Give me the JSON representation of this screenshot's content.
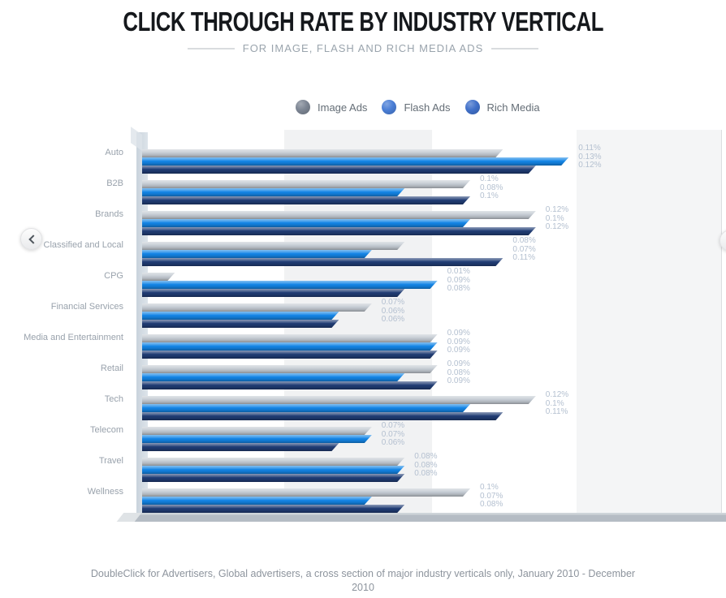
{
  "header": {
    "title": "CLICK THROUGH RATE BY INDUSTRY VERTICAL",
    "subtitle": "FOR IMAGE, FLASH AND RICH MEDIA ADS"
  },
  "legend": {
    "items": [
      {
        "label": "Image Ads",
        "color": "#7c8593"
      },
      {
        "label": "Flash Ads",
        "color": "#4a7ed6"
      },
      {
        "label": "Rich Media",
        "color": "#4070c9"
      }
    ]
  },
  "chart_data": {
    "type": "bar",
    "orientation": "horizontal",
    "title": "CLICK THROUGH RATE BY INDUSTRY VERTICAL",
    "subtitle": "FOR IMAGE, FLASH AND RICH MEDIA ADS",
    "unit": "%",
    "xlim": [
      0,
      0.14
    ],
    "grid": false,
    "legend_position": "top",
    "categories": [
      "Auto",
      "B2B",
      "Brands",
      "Classified and Local",
      "CPG",
      "Financial Services",
      "Media and Entertainment",
      "Retail",
      "Tech",
      "Telecom",
      "Travel",
      "Wellness"
    ],
    "series": [
      {
        "name": "Image Ads",
        "color": "#c3cad2",
        "values": [
          0.11,
          0.1,
          0.12,
          0.08,
          0.01,
          0.07,
          0.09,
          0.09,
          0.12,
          0.07,
          0.08,
          0.1
        ]
      },
      {
        "name": "Flash Ads",
        "color": "#1385e6",
        "values": [
          0.13,
          0.08,
          0.1,
          0.07,
          0.09,
          0.06,
          0.09,
          0.08,
          0.1,
          0.07,
          0.08,
          0.07
        ]
      },
      {
        "name": "Rich Media",
        "color": "#203c74",
        "values": [
          0.12,
          0.1,
          0.12,
          0.11,
          0.08,
          0.06,
          0.09,
          0.09,
          0.11,
          0.06,
          0.08,
          0.08
        ]
      }
    ],
    "value_label_suffix": "%"
  },
  "nav": {
    "prev_label": "previous",
    "next_label": "next"
  },
  "footer": {
    "line1": "DoubleClick for Advertisers, Global advertisers, a cross section of major industry verticals only, January 2010 - December",
    "line2": "2010"
  }
}
